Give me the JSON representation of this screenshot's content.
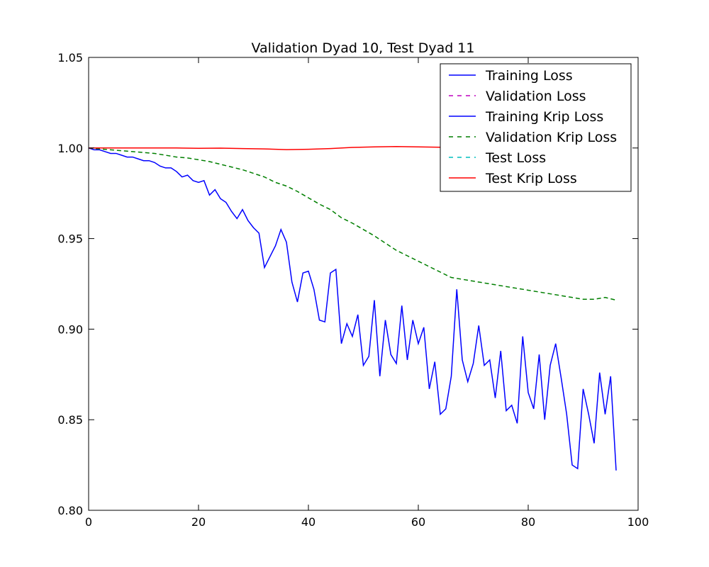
{
  "chart_data": {
    "type": "line",
    "title": "Validation Dyad 10, Test Dyad 11",
    "xlabel": "",
    "ylabel": "",
    "xlim": [
      0,
      100
    ],
    "ylim": [
      0.8,
      1.05
    ],
    "xticks": [
      "0",
      "20",
      "40",
      "60",
      "80",
      "100"
    ],
    "yticks": [
      "0.80",
      "0.85",
      "0.90",
      "0.95",
      "1.00",
      "1.05"
    ],
    "grid": false,
    "legend_position": "top-right",
    "series": [
      {
        "name": "Training Loss",
        "color": "#0000ff",
        "style": "solid",
        "x": [],
        "values": []
      },
      {
        "name": "Validation Loss",
        "color": "#bf00bf",
        "style": "dashed",
        "x": [],
        "values": []
      },
      {
        "name": "Training Krip Loss",
        "color": "#0000ff",
        "style": "solid",
        "x": [
          0,
          1,
          2,
          3,
          4,
          5,
          6,
          7,
          8,
          9,
          10,
          11,
          12,
          13,
          14,
          15,
          16,
          17,
          18,
          19,
          20,
          21,
          22,
          23,
          24,
          25,
          26,
          27,
          28,
          29,
          30,
          31,
          32,
          33,
          34,
          35,
          36,
          37,
          38,
          39,
          40,
          41,
          42,
          43,
          44,
          45,
          46,
          47,
          48,
          49,
          50,
          51,
          52,
          53,
          54,
          55,
          56,
          57,
          58,
          59,
          60,
          61,
          62,
          63,
          64,
          65,
          66,
          67,
          68,
          69,
          70,
          71,
          72,
          73,
          74,
          75,
          76,
          77,
          78,
          79,
          80,
          81,
          82,
          83,
          84,
          85,
          86,
          87,
          88,
          89,
          90,
          91,
          92,
          93,
          94,
          95,
          96
        ],
        "values": [
          1.0,
          0.999,
          0.999,
          0.998,
          0.997,
          0.997,
          0.996,
          0.995,
          0.995,
          0.994,
          0.993,
          0.993,
          0.992,
          0.99,
          0.989,
          0.989,
          0.987,
          0.984,
          0.985,
          0.982,
          0.981,
          0.982,
          0.974,
          0.977,
          0.972,
          0.97,
          0.965,
          0.961,
          0.966,
          0.96,
          0.956,
          0.953,
          0.934,
          0.94,
          0.946,
          0.955,
          0.948,
          0.926,
          0.915,
          0.931,
          0.932,
          0.922,
          0.905,
          0.904,
          0.931,
          0.933,
          0.892,
          0.903,
          0.896,
          0.908,
          0.88,
          0.885,
          0.916,
          0.874,
          0.905,
          0.886,
          0.881,
          0.913,
          0.883,
          0.905,
          0.892,
          0.901,
          0.867,
          0.882,
          0.853,
          0.856,
          0.874,
          0.922,
          0.883,
          0.871,
          0.881,
          0.902,
          0.88,
          0.883,
          0.862,
          0.888,
          0.855,
          0.858,
          0.848,
          0.896,
          0.865,
          0.856,
          0.886,
          0.85,
          0.88,
          0.892,
          0.873,
          0.853,
          0.825,
          0.823,
          0.867,
          0.853,
          0.837,
          0.876,
          0.853,
          0.874,
          0.822
        ]
      },
      {
        "name": "Validation Krip Loss",
        "color": "#007f00",
        "style": "dashed",
        "x": [
          0,
          2,
          4,
          6,
          8,
          10,
          12,
          14,
          16,
          18,
          20,
          22,
          24,
          26,
          28,
          30,
          32,
          34,
          36,
          38,
          40,
          42,
          44,
          46,
          48,
          50,
          52,
          54,
          56,
          58,
          60,
          62,
          64,
          66,
          68,
          70,
          72,
          74,
          76,
          78,
          80,
          82,
          84,
          86,
          88,
          90,
          92,
          94,
          96
        ],
        "values": [
          1.0,
          0.9995,
          0.999,
          0.9985,
          0.998,
          0.9975,
          0.997,
          0.996,
          0.995,
          0.9945,
          0.9935,
          0.9925,
          0.991,
          0.9895,
          0.988,
          0.986,
          0.984,
          0.981,
          0.979,
          0.976,
          0.9725,
          0.969,
          0.966,
          0.9615,
          0.9585,
          0.955,
          0.9515,
          0.9475,
          0.9435,
          0.9405,
          0.9375,
          0.9345,
          0.9315,
          0.9285,
          0.9275,
          0.9265,
          0.9255,
          0.9245,
          0.9235,
          0.9225,
          0.9215,
          0.9205,
          0.9195,
          0.9185,
          0.9175,
          0.9165,
          0.9165,
          0.9175,
          0.916
        ]
      },
      {
        "name": "Test Loss",
        "color": "#00bfbf",
        "style": "dashed",
        "x": [],
        "values": []
      },
      {
        "name": "Test Krip Loss",
        "color": "#ff0000",
        "style": "solid",
        "x": [
          0,
          4,
          8,
          12,
          16,
          20,
          24,
          28,
          32,
          36,
          40,
          44,
          48,
          52,
          56,
          60,
          64,
          66
        ],
        "values": [
          1.0,
          1.0,
          1.0,
          1.0,
          1.0,
          0.9998,
          0.9999,
          0.9997,
          0.9995,
          0.9991,
          0.9993,
          0.9997,
          1.0003,
          1.0006,
          1.0008,
          1.0006,
          1.0004,
          1.0003
        ]
      }
    ]
  }
}
